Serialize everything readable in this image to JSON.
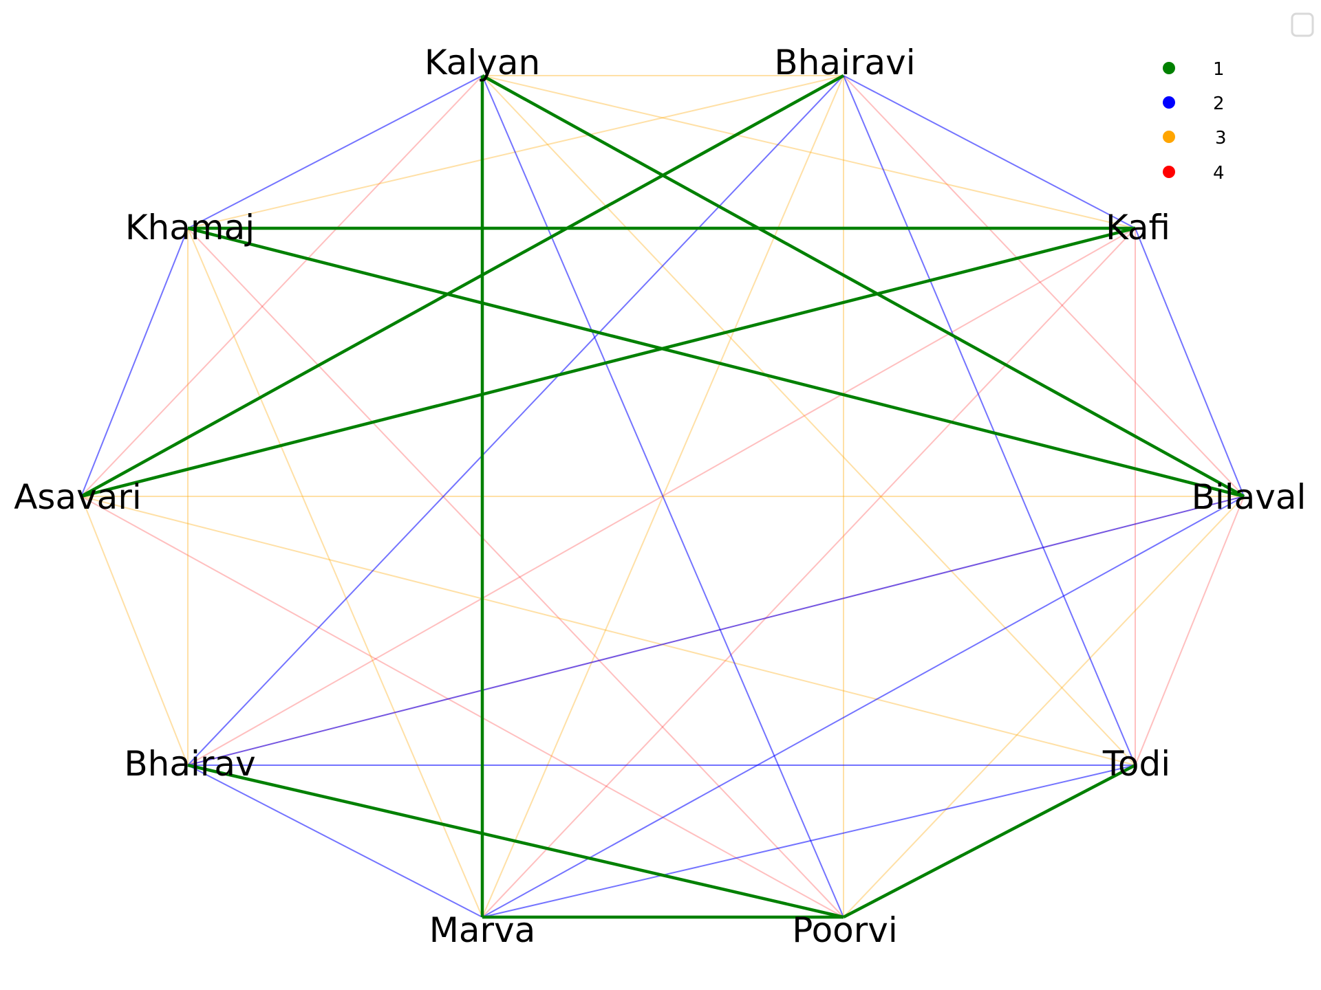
{
  "nodes": [
    {
      "id": "kalyan",
      "label": "Kalyan"
    },
    {
      "id": "bhairavi",
      "label": "Bhairavi"
    },
    {
      "id": "kafi",
      "label": "Kafi"
    },
    {
      "id": "bilaval",
      "label": "Bilaval"
    },
    {
      "id": "todi",
      "label": "Todi"
    },
    {
      "id": "poorvi",
      "label": "Poorvi"
    },
    {
      "id": "marva",
      "label": "Marva"
    },
    {
      "id": "bhairav",
      "label": "Bhairav"
    },
    {
      "id": "asavari",
      "label": "Asavari"
    },
    {
      "id": "khamaj",
      "label": "Khamaj"
    }
  ],
  "legend": [
    {
      "label": "1",
      "color": "#008000"
    },
    {
      "label": "2",
      "color": "#0000ff"
    },
    {
      "label": "3",
      "color": "#ffa500"
    },
    {
      "label": "4",
      "color": "#ff0000"
    }
  ],
  "edges": [
    {
      "from": "kalyan",
      "to": "marva",
      "level": 1
    },
    {
      "from": "kalyan",
      "to": "bilaval",
      "level": 1
    },
    {
      "from": "bhairavi",
      "to": "asavari",
      "level": 1
    },
    {
      "from": "khamaj",
      "to": "kafi",
      "level": 1
    },
    {
      "from": "khamaj",
      "to": "bilaval",
      "level": 1
    },
    {
      "from": "kafi",
      "to": "asavari",
      "level": 1
    },
    {
      "from": "bhairav",
      "to": "poorvi",
      "level": 1
    },
    {
      "from": "marva",
      "to": "poorvi",
      "level": 1
    },
    {
      "from": "todi",
      "to": "poorvi",
      "level": 1
    },
    {
      "from": "kalyan",
      "to": "khamaj",
      "level": 2
    },
    {
      "from": "kalyan",
      "to": "poorvi",
      "level": 2
    },
    {
      "from": "bhairavi",
      "to": "kafi",
      "level": 2
    },
    {
      "from": "bhairavi",
      "to": "todi",
      "level": 2
    },
    {
      "from": "bhairavi",
      "to": "bhairav",
      "level": 2
    },
    {
      "from": "kafi",
      "to": "bilaval",
      "level": 2
    },
    {
      "from": "khamaj",
      "to": "asavari",
      "level": 2
    },
    {
      "from": "bilaval",
      "to": "bhairav",
      "level": 2
    },
    {
      "from": "bilaval",
      "to": "marva",
      "level": 2
    },
    {
      "from": "bhairav",
      "to": "todi",
      "level": 2
    },
    {
      "from": "bhairav",
      "to": "marva",
      "level": 2
    },
    {
      "from": "todi",
      "to": "marva",
      "level": 2
    },
    {
      "from": "kalyan",
      "to": "bhairavi",
      "level": 3
    },
    {
      "from": "kalyan",
      "to": "kafi",
      "level": 3
    },
    {
      "from": "kalyan",
      "to": "todi",
      "level": 3
    },
    {
      "from": "bhairavi",
      "to": "khamaj",
      "level": 3
    },
    {
      "from": "bhairavi",
      "to": "poorvi",
      "level": 3
    },
    {
      "from": "khamaj",
      "to": "bhairav",
      "level": 3
    },
    {
      "from": "khamaj",
      "to": "marva",
      "level": 3
    },
    {
      "from": "asavari",
      "to": "bilaval",
      "level": 3
    },
    {
      "from": "asavari",
      "to": "bhairav",
      "level": 3
    },
    {
      "from": "asavari",
      "to": "todi",
      "level": 3
    },
    {
      "from": "bilaval",
      "to": "poorvi",
      "level": 3
    },
    {
      "from": "bhairavi",
      "to": "marva",
      "level": 3
    },
    {
      "from": "kalyan",
      "to": "asavari",
      "level": 4
    },
    {
      "from": "bhairavi",
      "to": "bilaval",
      "level": 4
    },
    {
      "from": "kafi",
      "to": "todi",
      "level": 4
    },
    {
      "from": "kafi",
      "to": "marva",
      "level": 4
    },
    {
      "from": "kafi",
      "to": "bhairav",
      "level": 4
    },
    {
      "from": "khamaj",
      "to": "poorvi",
      "level": 4
    },
    {
      "from": "asavari",
      "to": "poorvi",
      "level": 4
    },
    {
      "from": "bilaval",
      "to": "todi",
      "level": 4
    },
    {
      "from": "bhairav",
      "to": "bilaval",
      "level": 4
    }
  ]
}
